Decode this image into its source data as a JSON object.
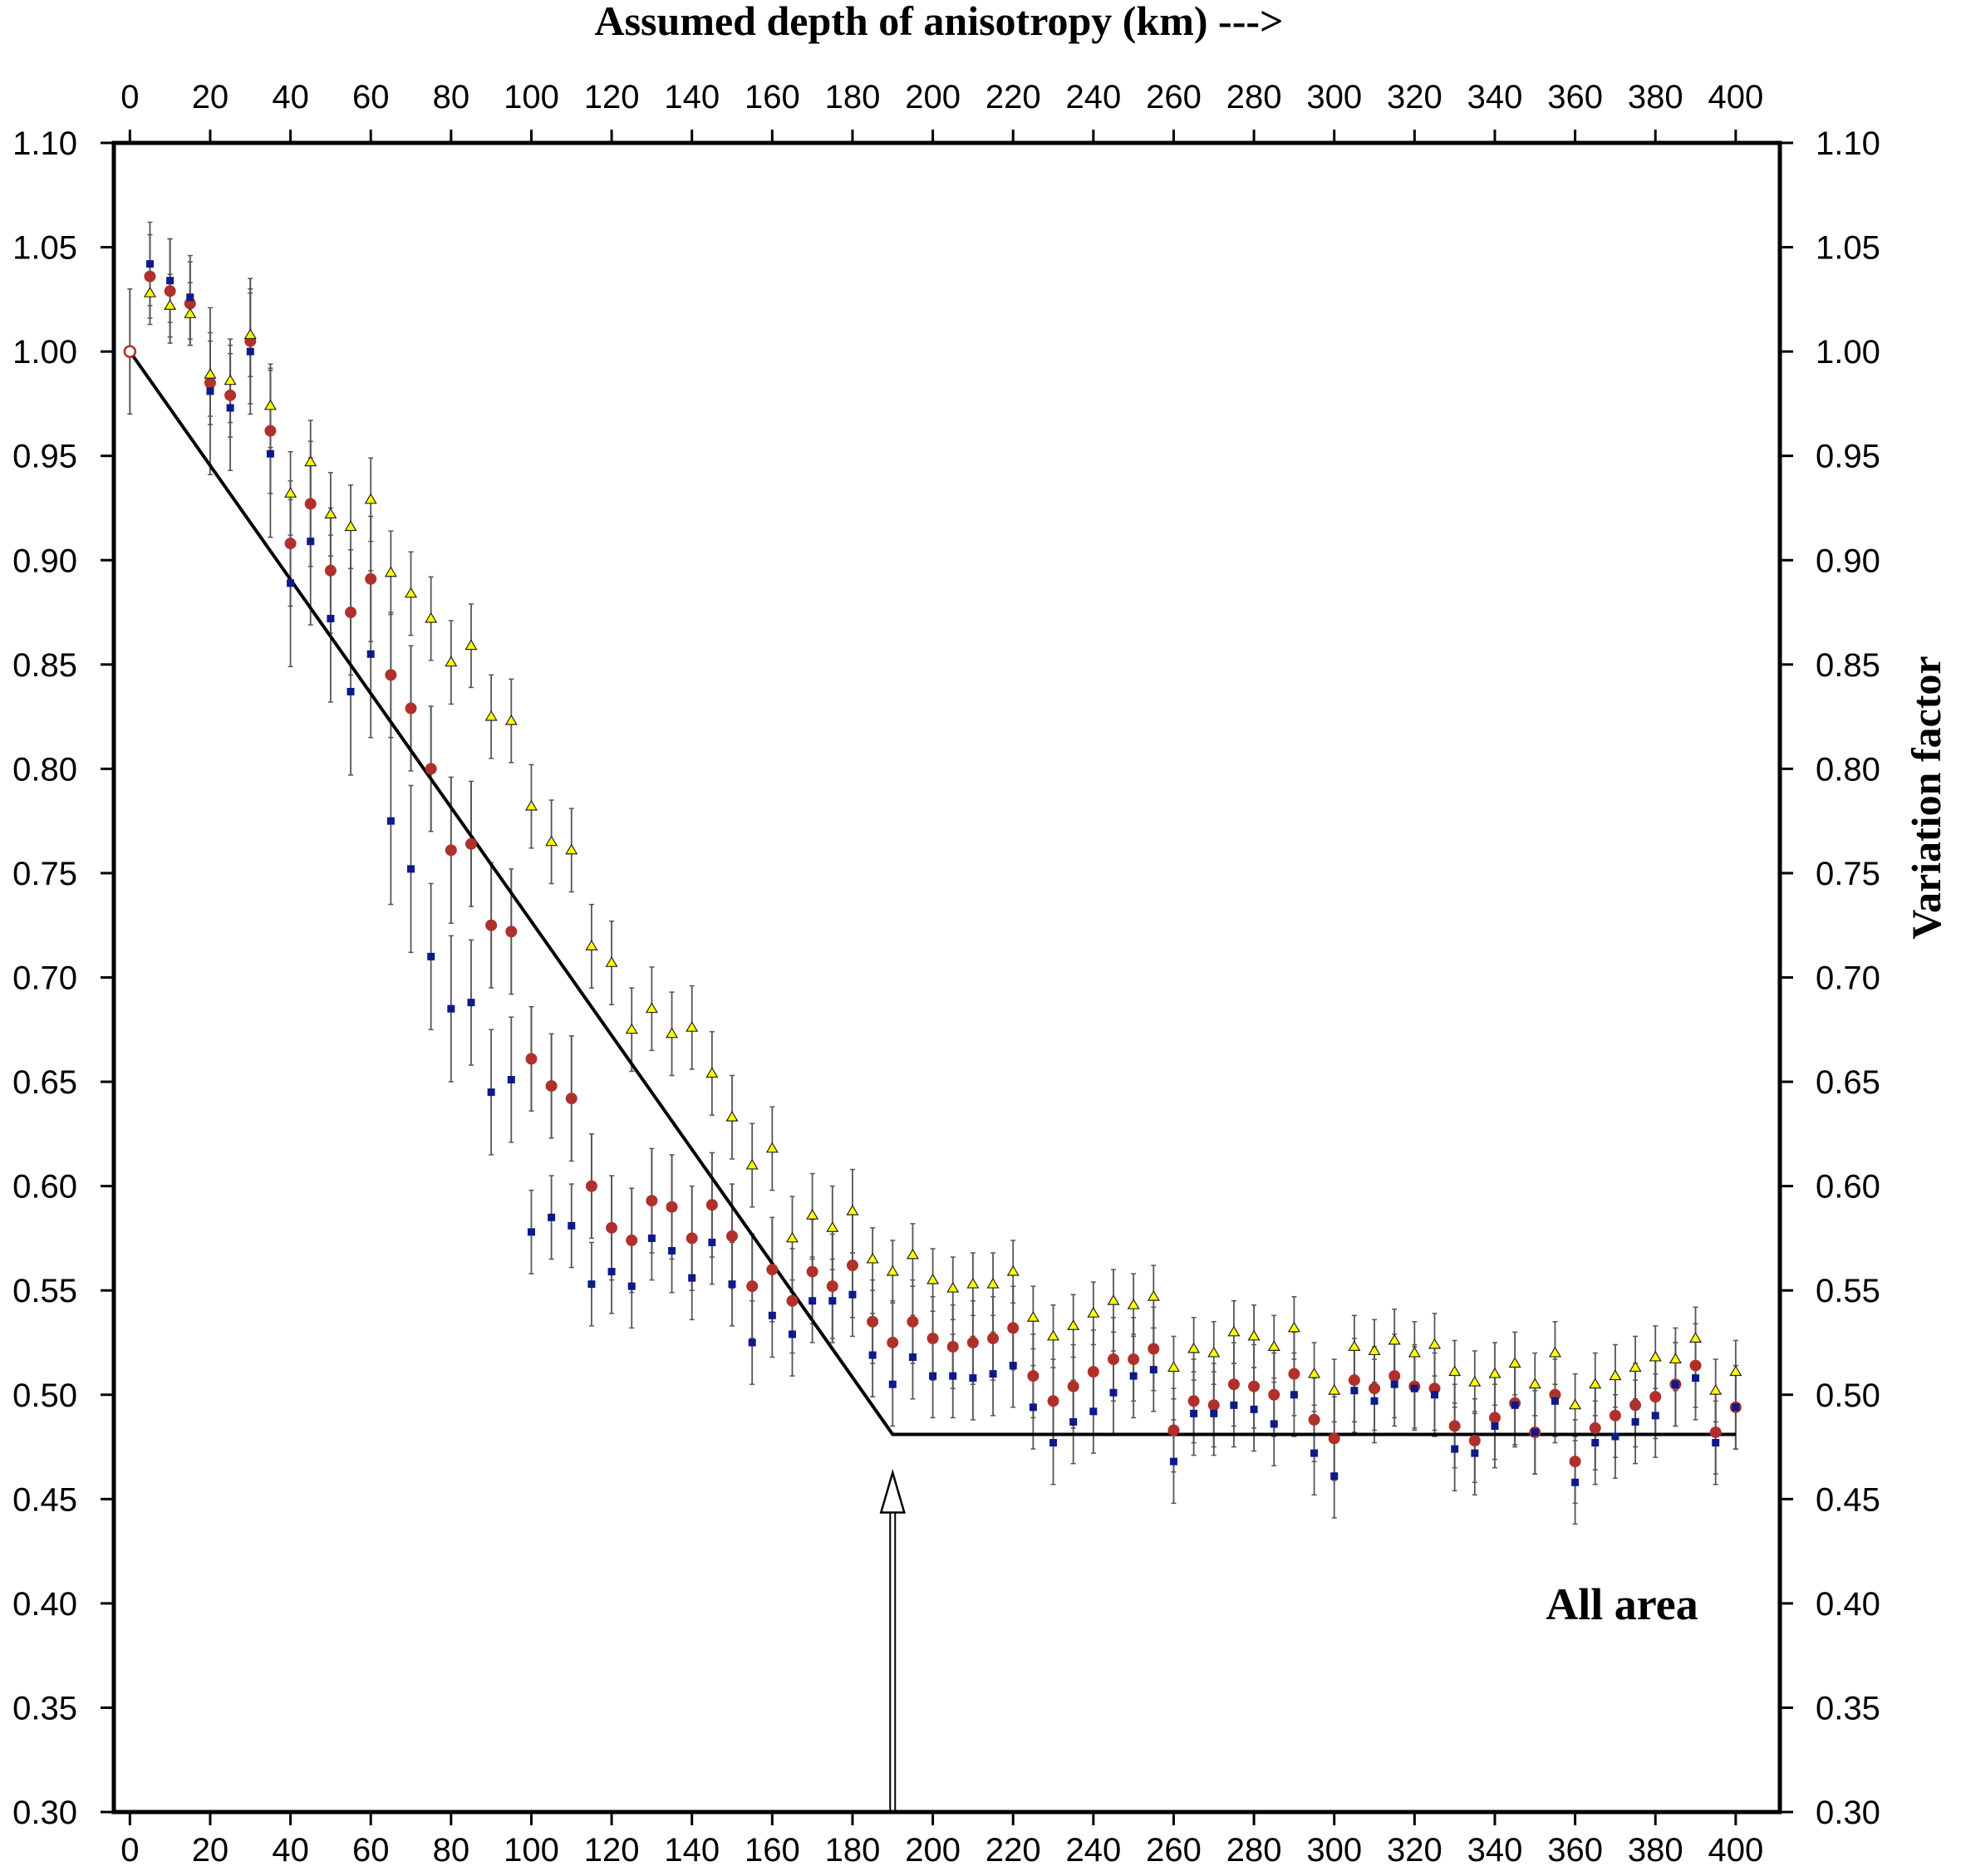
{
  "chart_data": {
    "type": "scatter",
    "title": "Assumed depth of anisotropy (km) --->",
    "xlabel": "",
    "ylabel": "Variation factor",
    "xlim": [
      -4,
      411
    ],
    "ylim": [
      0.3,
      1.1
    ],
    "xticks": [
      "0",
      "20",
      "40",
      "60",
      "80",
      "100",
      "120",
      "140",
      "160",
      "180",
      "200",
      "220",
      "240",
      "260",
      "280",
      "300",
      "320",
      "340",
      "360",
      "380",
      "400"
    ],
    "yticks": [
      "0.30",
      "0.35",
      "0.40",
      "0.45",
      "0.50",
      "0.55",
      "0.60",
      "0.65",
      "0.70",
      "0.75",
      "0.80",
      "0.85",
      "0.90",
      "0.95",
      "1.00",
      "1.05",
      "1.10"
    ],
    "grid": false,
    "legend": "none",
    "annotation": "All area",
    "arrow_x": 190,
    "model_line": {
      "x": [
        0,
        190,
        400
      ],
      "y": [
        1.0,
        0.481,
        0.481
      ]
    },
    "colors": {
      "red": "#b0302c",
      "blue": "#0c1a8a",
      "yellow": "#ffff00",
      "line": "#000000",
      "errorbar": "#555555"
    },
    "x": [
      0,
      5,
      10,
      15,
      20,
      25,
      30,
      35,
      40,
      45,
      50,
      55,
      60,
      65,
      70,
      75,
      80,
      85,
      90,
      95,
      100,
      105,
      110,
      115,
      120,
      125,
      130,
      135,
      140,
      145,
      150,
      155,
      160,
      165,
      170,
      175,
      180,
      185,
      190,
      195,
      200,
      205,
      210,
      215,
      220,
      225,
      230,
      235,
      240,
      245,
      250,
      255,
      260,
      265,
      270,
      275,
      280,
      285,
      290,
      295,
      300,
      305,
      310,
      315,
      320,
      325,
      330,
      335,
      340,
      345,
      350,
      355,
      360,
      365,
      370,
      375,
      380,
      385,
      390,
      395,
      400
    ],
    "series": [
      {
        "marker": "circle",
        "color": "#b0302c",
        "values": [
          1.0,
          1.036,
          1.029,
          1.023,
          0.985,
          0.979,
          1.005,
          0.962,
          0.908,
          0.927,
          0.895,
          0.875,
          0.891,
          0.845,
          0.829,
          0.8,
          0.761,
          0.764,
          0.725,
          0.722,
          0.661,
          0.648,
          0.642,
          0.6,
          0.58,
          0.574,
          0.593,
          0.59,
          0.575,
          0.591,
          0.576,
          0.552,
          0.56,
          0.545,
          0.559,
          0.552,
          0.562,
          0.535,
          0.525,
          0.535,
          0.527,
          0.523,
          0.525,
          0.527,
          0.532,
          0.509,
          0.497,
          0.504,
          0.511,
          0.517,
          0.517,
          0.522,
          0.483,
          0.497,
          0.495,
          0.505,
          0.504,
          0.5,
          0.51,
          0.488,
          0.479,
          0.507,
          0.503,
          0.509,
          0.504,
          0.503,
          0.485,
          0.478,
          0.489,
          0.496,
          0.482,
          0.5,
          0.468,
          0.484,
          0.49,
          0.495,
          0.499,
          0.505,
          0.514,
          0.482,
          0.494
        ],
        "err": [
          0.03,
          0.02,
          0.025,
          0.02,
          0.02,
          0.02,
          0.03,
          0.03,
          0.03,
          0.03,
          0.03,
          0.03,
          0.03,
          0.03,
          0.03,
          0.03,
          0.035,
          0.03,
          0.03,
          0.03,
          0.025,
          0.025,
          0.03,
          0.025,
          0.025,
          0.025,
          0.025,
          0.025,
          0.025,
          0.025,
          0.025,
          0.025,
          0.025,
          0.025,
          0.025,
          0.025,
          0.025,
          0.02,
          0.02,
          0.02,
          0.02,
          0.02,
          0.02,
          0.02,
          0.02,
          0.02,
          0.02,
          0.02,
          0.02,
          0.02,
          0.02,
          0.02,
          0.02,
          0.02,
          0.02,
          0.02,
          0.02,
          0.02,
          0.02,
          0.02,
          0.02,
          0.02,
          0.02,
          0.02,
          0.02,
          0.02,
          0.02,
          0.02,
          0.02,
          0.02,
          0.02,
          0.02,
          0.02,
          0.02,
          0.02,
          0.02,
          0.02,
          0.02,
          0.02,
          0.02,
          0.02
        ]
      },
      {
        "marker": "square",
        "color": "#0c1a8a",
        "values": [
          null,
          1.042,
          1.034,
          1.026,
          0.981,
          0.973,
          1.0,
          0.951,
          0.889,
          0.909,
          0.872,
          0.837,
          0.855,
          0.775,
          0.752,
          0.71,
          0.685,
          0.688,
          0.645,
          0.651,
          0.578,
          0.585,
          0.581,
          0.553,
          0.559,
          0.552,
          0.575,
          0.569,
          0.556,
          0.573,
          0.553,
          0.525,
          0.538,
          0.529,
          0.545,
          0.545,
          0.548,
          0.519,
          0.505,
          0.518,
          0.509,
          0.509,
          0.508,
          0.51,
          0.514,
          0.494,
          0.477,
          0.487,
          0.492,
          0.501,
          0.509,
          0.512,
          0.468,
          0.491,
          0.491,
          0.495,
          0.493,
          0.486,
          0.5,
          0.472,
          0.461,
          0.502,
          0.497,
          0.505,
          0.503,
          0.5,
          0.474,
          0.472,
          0.485,
          0.495,
          0.482,
          0.497,
          0.458,
          0.477,
          0.48,
          0.487,
          0.49,
          0.505,
          0.508,
          0.477,
          0.494
        ],
        "err": [
          0,
          0.02,
          0.02,
          0.02,
          0.04,
          0.03,
          0.03,
          0.04,
          0.04,
          0.04,
          0.04,
          0.04,
          0.04,
          0.04,
          0.04,
          0.035,
          0.035,
          0.03,
          0.03,
          0.03,
          0.02,
          0.02,
          0.02,
          0.02,
          0.02,
          0.02,
          0.02,
          0.02,
          0.02,
          0.02,
          0.02,
          0.02,
          0.02,
          0.02,
          0.02,
          0.02,
          0.02,
          0.02,
          0.02,
          0.02,
          0.02,
          0.02,
          0.02,
          0.02,
          0.02,
          0.02,
          0.02,
          0.02,
          0.02,
          0.02,
          0.02,
          0.02,
          0.02,
          0.02,
          0.02,
          0.02,
          0.02,
          0.02,
          0.02,
          0.02,
          0.02,
          0.02,
          0.02,
          0.02,
          0.02,
          0.02,
          0.02,
          0.02,
          0.02,
          0.02,
          0.02,
          0.02,
          0.02,
          0.02,
          0.02,
          0.02,
          0.02,
          0.02,
          0.02,
          0.02,
          0.02
        ]
      },
      {
        "marker": "triangle",
        "color": "#ffff00",
        "values": [
          null,
          1.028,
          1.022,
          1.018,
          0.989,
          0.986,
          1.008,
          0.974,
          0.932,
          0.947,
          0.922,
          0.916,
          0.929,
          0.894,
          0.884,
          0.872,
          0.851,
          0.859,
          0.825,
          0.823,
          0.782,
          0.765,
          0.761,
          0.715,
          0.707,
          0.675,
          0.685,
          0.673,
          0.676,
          0.654,
          0.633,
          0.61,
          0.618,
          0.575,
          0.586,
          0.58,
          0.588,
          0.565,
          0.559,
          0.567,
          0.555,
          0.551,
          0.553,
          0.553,
          0.559,
          0.537,
          0.528,
          0.533,
          0.539,
          0.545,
          0.543,
          0.547,
          0.513,
          0.522,
          0.52,
          0.53,
          0.528,
          0.523,
          0.532,
          0.51,
          0.502,
          0.523,
          0.521,
          0.526,
          0.52,
          0.524,
          0.511,
          0.506,
          0.51,
          0.515,
          0.505,
          0.52,
          0.495,
          0.505,
          0.509,
          0.513,
          0.518,
          0.517,
          0.527,
          0.502,
          0.511
        ],
        "err": [
          0,
          0.015,
          0.015,
          0.015,
          0.02,
          0.02,
          0.02,
          0.02,
          0.02,
          0.02,
          0.02,
          0.02,
          0.02,
          0.02,
          0.02,
          0.02,
          0.02,
          0.02,
          0.02,
          0.02,
          0.02,
          0.02,
          0.02,
          0.02,
          0.02,
          0.02,
          0.02,
          0.02,
          0.02,
          0.02,
          0.02,
          0.02,
          0.02,
          0.02,
          0.02,
          0.02,
          0.02,
          0.015,
          0.015,
          0.015,
          0.015,
          0.015,
          0.015,
          0.015,
          0.015,
          0.015,
          0.015,
          0.015,
          0.015,
          0.015,
          0.015,
          0.015,
          0.015,
          0.015,
          0.015,
          0.015,
          0.015,
          0.015,
          0.015,
          0.015,
          0.015,
          0.015,
          0.015,
          0.015,
          0.015,
          0.015,
          0.015,
          0.015,
          0.015,
          0.015,
          0.015,
          0.015,
          0.015,
          0.015,
          0.015,
          0.015,
          0.015,
          0.015,
          0.015,
          0.015,
          0.015
        ]
      }
    ]
  }
}
